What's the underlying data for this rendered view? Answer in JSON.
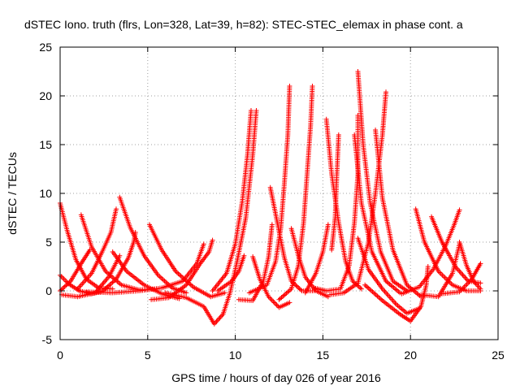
{
  "chart_data": {
    "type": "scatter",
    "title": "dSTEC Iono. truth (flrs, Lon=328, Lat=39, h=82): STEC-STEC_elemax in phase cont. a",
    "xlabel": "GPS time / hours of day 026 of year 2016",
    "ylabel": "dSTEC  / TECUs",
    "xlim": [
      0,
      25
    ],
    "ylim": [
      -5,
      25
    ],
    "x_ticks": [
      "0",
      "5",
      "10",
      "15",
      "20",
      "25"
    ],
    "y_ticks": [
      "-5",
      "0",
      "5",
      "10",
      "15",
      "20",
      "25"
    ],
    "grid": true,
    "legend": "none",
    "marker": "plus",
    "series_color": "#ff0000",
    "arcs": [
      [
        [
          0.0,
          9.0
        ],
        [
          0.4,
          6.2
        ],
        [
          0.9,
          3.2
        ],
        [
          1.5,
          1.2
        ],
        [
          2.2,
          0.3
        ],
        [
          3.0,
          0.2
        ]
      ],
      [
        [
          0.0,
          1.6
        ],
        [
          0.5,
          0.7
        ],
        [
          1.1,
          0.0
        ],
        [
          1.8,
          -0.3
        ],
        [
          2.5,
          0.0
        ]
      ],
      [
        [
          0.0,
          0.0
        ],
        [
          0.6,
          1.0
        ],
        [
          1.2,
          2.8
        ],
        [
          1.7,
          4.2
        ]
      ],
      [
        [
          1.2,
          7.8
        ],
        [
          1.8,
          4.5
        ],
        [
          2.6,
          2.0
        ],
        [
          3.5,
          0.6
        ],
        [
          4.5,
          0.1
        ],
        [
          5.5,
          0.2
        ]
      ],
      [
        [
          0.1,
          -0.4
        ],
        [
          1.0,
          -0.6
        ],
        [
          2.0,
          -0.2
        ],
        [
          2.8,
          1.5
        ],
        [
          3.4,
          3.6
        ]
      ],
      [
        [
          1.0,
          0.2
        ],
        [
          1.8,
          1.8
        ],
        [
          2.4,
          4.0
        ],
        [
          2.9,
          6.0
        ],
        [
          3.2,
          8.4
        ]
      ],
      [
        [
          3.4,
          9.6
        ],
        [
          4.0,
          6.5
        ],
        [
          4.8,
          3.6
        ],
        [
          5.6,
          1.6
        ],
        [
          6.4,
          0.3
        ],
        [
          7.2,
          -0.2
        ]
      ],
      [
        [
          2.5,
          0.1
        ],
        [
          3.2,
          1.2
        ],
        [
          3.9,
          3.4
        ],
        [
          4.2,
          5.0
        ],
        [
          4.3,
          6.0
        ]
      ],
      [
        [
          3.0,
          4.0
        ],
        [
          3.8,
          2.0
        ],
        [
          4.8,
          0.6
        ],
        [
          5.8,
          -0.3
        ],
        [
          6.8,
          -0.8
        ]
      ],
      [
        [
          1.5,
          -0.1
        ],
        [
          3.0,
          -0.2
        ],
        [
          4.5,
          0.0
        ],
        [
          5.8,
          0.3
        ],
        [
          7.0,
          1.0
        ],
        [
          7.8,
          2.8
        ],
        [
          8.2,
          4.8
        ]
      ],
      [
        [
          5.1,
          6.8
        ],
        [
          5.8,
          4.2
        ],
        [
          6.6,
          2.0
        ],
        [
          7.6,
          0.4
        ],
        [
          8.6,
          -0.6
        ],
        [
          9.4,
          -0.2
        ]
      ],
      [
        [
          5.2,
          -0.9
        ],
        [
          6.2,
          -0.7
        ],
        [
          7.2,
          0.6
        ],
        [
          8.0,
          2.8
        ],
        [
          8.5,
          4.0
        ],
        [
          8.7,
          5.2
        ]
      ],
      [
        [
          6.0,
          -0.2
        ],
        [
          7.2,
          -0.7
        ],
        [
          8.2,
          -1.6
        ],
        [
          8.8,
          -3.4
        ],
        [
          9.3,
          -2.4
        ],
        [
          9.7,
          -0.2
        ],
        [
          10.1,
          3.0
        ],
        [
          10.6,
          7.5
        ],
        [
          11.0,
          14.0
        ],
        [
          11.2,
          18.5
        ]
      ],
      [
        [
          8.7,
          0.0
        ],
        [
          9.5,
          1.8
        ],
        [
          10.0,
          4.8
        ],
        [
          10.4,
          9.2
        ],
        [
          10.7,
          14.0
        ],
        [
          10.9,
          18.5
        ]
      ],
      [
        [
          9.0,
          0.0
        ],
        [
          9.8,
          1.0
        ],
        [
          10.2,
          2.0
        ],
        [
          10.5,
          3.6
        ]
      ],
      [
        [
          11.0,
          3.5
        ],
        [
          11.4,
          1.2
        ],
        [
          11.9,
          -0.6
        ],
        [
          12.5,
          -1.7
        ],
        [
          13.1,
          -1.2
        ]
      ],
      [
        [
          10.2,
          -0.9
        ],
        [
          11.0,
          -1.0
        ],
        [
          11.6,
          1.0
        ],
        [
          11.9,
          3.5
        ],
        [
          12.1,
          6.8
        ]
      ],
      [
        [
          12.0,
          10.6
        ],
        [
          12.4,
          7.0
        ],
        [
          12.8,
          3.4
        ],
        [
          13.2,
          1.0
        ],
        [
          13.8,
          0.0
        ],
        [
          14.5,
          0.0
        ]
      ],
      [
        [
          10.8,
          -0.2
        ],
        [
          11.8,
          0.6
        ],
        [
          12.3,
          3.0
        ],
        [
          12.6,
          6.5
        ],
        [
          12.8,
          11.0
        ],
        [
          13.0,
          16.0
        ],
        [
          13.1,
          21.0
        ]
      ],
      [
        [
          12.5,
          -0.9
        ],
        [
          13.2,
          0.2
        ],
        [
          13.6,
          2.6
        ],
        [
          13.9,
          7.0
        ],
        [
          14.1,
          12.0
        ],
        [
          14.3,
          17.0
        ],
        [
          14.4,
          21.0
        ]
      ],
      [
        [
          13.2,
          6.4
        ],
        [
          13.6,
          3.6
        ],
        [
          14.0,
          1.4
        ],
        [
          14.6,
          0.0
        ],
        [
          15.3,
          -0.6
        ]
      ],
      [
        [
          14.0,
          -0.2
        ],
        [
          14.6,
          1.8
        ],
        [
          15.0,
          4.0
        ],
        [
          15.3,
          6.8
        ]
      ],
      [
        [
          15.2,
          17.6
        ],
        [
          15.5,
          12.0
        ],
        [
          15.9,
          7.0
        ],
        [
          16.3,
          3.0
        ],
        [
          16.7,
          1.0
        ],
        [
          17.2,
          0.2
        ]
      ],
      [
        [
          14.5,
          0.3
        ],
        [
          15.2,
          0.0
        ],
        [
          16.0,
          0.2
        ],
        [
          16.5,
          2.6
        ],
        [
          16.8,
          7.0
        ],
        [
          17.0,
          12.0
        ],
        [
          17.0,
          18.0
        ]
      ],
      [
        [
          15.5,
          4.2
        ],
        [
          15.7,
          7.5
        ],
        [
          15.8,
          12.0
        ],
        [
          15.9,
          16.0
        ]
      ],
      [
        [
          17.0,
          22.5
        ],
        [
          17.3,
          15.0
        ],
        [
          17.7,
          9.0
        ],
        [
          18.3,
          4.0
        ],
        [
          19.0,
          1.0
        ],
        [
          19.8,
          0.0
        ]
      ],
      [
        [
          15.4,
          -0.4
        ],
        [
          16.2,
          -0.2
        ],
        [
          17.0,
          0.8
        ],
        [
          17.6,
          5.0
        ],
        [
          18.0,
          10.0
        ],
        [
          18.4,
          16.0
        ],
        [
          18.6,
          20.4
        ]
      ],
      [
        [
          17.0,
          5.4
        ],
        [
          17.6,
          2.2
        ],
        [
          18.4,
          0.2
        ],
        [
          19.2,
          -1.4
        ],
        [
          19.8,
          -2.3
        ],
        [
          20.5,
          -1.8
        ]
      ],
      [
        [
          16.8,
          16.0
        ],
        [
          17.2,
          9.0
        ],
        [
          17.8,
          4.0
        ],
        [
          18.6,
          1.0
        ],
        [
          19.4,
          -0.2
        ]
      ],
      [
        [
          18.0,
          16.5
        ],
        [
          18.4,
          9.5
        ],
        [
          19.0,
          4.2
        ],
        [
          19.8,
          0.6
        ],
        [
          20.6,
          -0.6
        ]
      ],
      [
        [
          17.4,
          0.6
        ],
        [
          18.4,
          -1.0
        ],
        [
          19.4,
          -2.4
        ],
        [
          20.0,
          -3.1
        ],
        [
          20.6,
          -1.6
        ],
        [
          20.9,
          0.6
        ],
        [
          21.0,
          2.5
        ]
      ],
      [
        [
          20.3,
          8.4
        ],
        [
          20.8,
          5.0
        ],
        [
          21.6,
          2.0
        ],
        [
          22.4,
          0.6
        ],
        [
          23.2,
          0.0
        ],
        [
          24.0,
          0.0
        ]
      ],
      [
        [
          19.5,
          -0.3
        ],
        [
          20.5,
          0.4
        ],
        [
          21.3,
          2.2
        ],
        [
          22.0,
          4.6
        ],
        [
          22.5,
          6.8
        ],
        [
          22.8,
          8.3
        ]
      ],
      [
        [
          21.2,
          7.6
        ],
        [
          21.8,
          5.0
        ],
        [
          22.6,
          2.4
        ],
        [
          23.3,
          1.0
        ],
        [
          24.0,
          0.8
        ]
      ],
      [
        [
          20.6,
          -0.4
        ],
        [
          21.6,
          -0.6
        ],
        [
          22.4,
          1.8
        ],
        [
          22.8,
          4.8
        ]
      ],
      [
        [
          22.8,
          5.0
        ],
        [
          23.2,
          2.6
        ],
        [
          23.6,
          1.0
        ],
        [
          24.0,
          0.2
        ]
      ],
      [
        [
          21.8,
          -0.3
        ],
        [
          22.8,
          -0.1
        ],
        [
          23.5,
          1.2
        ],
        [
          24.0,
          2.8
        ]
      ]
    ]
  }
}
